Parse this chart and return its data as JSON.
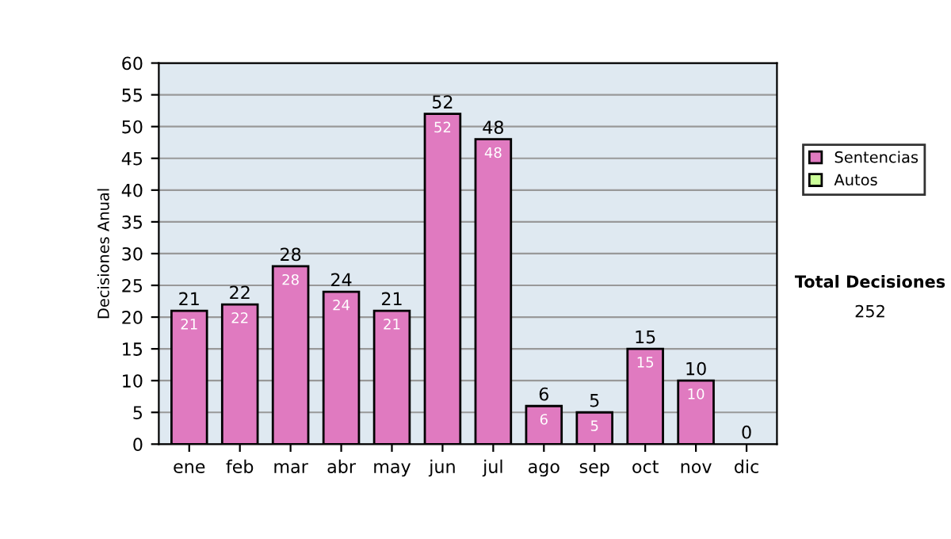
{
  "chart_data": {
    "type": "bar",
    "ylabel": "Decisiones Anual",
    "categories": [
      "ene",
      "feb",
      "mar",
      "abr",
      "may",
      "jun",
      "jul",
      "ago",
      "sep",
      "oct",
      "nov",
      "dic"
    ],
    "series": [
      {
        "name": "Sentencias",
        "color": "#e07ac0",
        "values": [
          21,
          22,
          28,
          24,
          21,
          52,
          48,
          6,
          5,
          15,
          10,
          0
        ],
        "value_labels": [
          "21",
          "22",
          "28",
          "24",
          "21",
          "52",
          "48",
          "6",
          "5",
          "15",
          "10",
          null
        ]
      },
      {
        "name": "Autos",
        "color": "#ccff99",
        "values": [
          0,
          0,
          0,
          0,
          0,
          0,
          0,
          0,
          0,
          0,
          0,
          0
        ]
      }
    ],
    "stacked": true,
    "totals": [
      "21",
      "22",
      "28",
      "24",
      "21",
      "52",
      "48",
      "6",
      "5",
      "15",
      "10",
      "0"
    ],
    "ylim": [
      0,
      60
    ],
    "yticks": [
      0,
      5,
      10,
      15,
      20,
      25,
      30,
      35,
      40,
      45,
      50,
      55,
      60
    ],
    "grid": "y",
    "legend": "right",
    "annotations": [
      "Total Decisiones",
      "252"
    ]
  }
}
